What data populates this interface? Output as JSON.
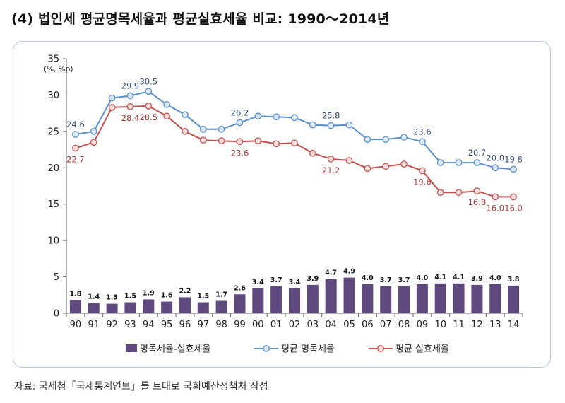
{
  "title": "(4) 법인세 평균명목세율과 평균실효세율 비교: 1990～2014년",
  "source": "자료: 국세청「국세통계연보」를 토대로 국회예산정책처 작성",
  "chart_data": {
    "type": "bar+line",
    "unit_label": "(%, %p)",
    "categories": [
      "90",
      "91",
      "92",
      "93",
      "94",
      "95",
      "96",
      "97",
      "98",
      "99",
      "00",
      "01",
      "02",
      "03",
      "04",
      "05",
      "06",
      "07",
      "08",
      "09",
      "10",
      "11",
      "12",
      "13",
      "14"
    ],
    "ylim": [
      0,
      35
    ],
    "yticks": [
      0,
      5,
      10,
      15,
      20,
      25,
      30,
      35
    ],
    "grid": false,
    "legend_position": "bottom",
    "series": [
      {
        "name": "명목세율-실효세율",
        "kind": "bar",
        "color": "#5f4a7d",
        "values": [
          1.8,
          1.4,
          1.3,
          1.5,
          1.9,
          1.6,
          2.2,
          1.5,
          1.7,
          2.6,
          3.4,
          3.7,
          3.4,
          3.9,
          4.7,
          4.9,
          4.0,
          3.7,
          3.7,
          4.0,
          4.1,
          4.1,
          3.9,
          4.0,
          3.8
        ],
        "labels": [
          "1.8",
          "1.4",
          "1.3",
          "1.5",
          "1.9",
          "1.6",
          "2.2",
          "1.5",
          "1.7",
          "2.6",
          "3.4",
          "3.7",
          "3.4",
          "3.9",
          "4.7",
          "4.9",
          "4.0",
          "3.7",
          "3.7",
          "4.0",
          "4.1",
          "4.1",
          "3.9",
          "4.0",
          "3.8"
        ]
      },
      {
        "name": "평균 명목세율",
        "kind": "line",
        "color": "#5b8fc9",
        "marker_fill": "#dce9f7",
        "values": [
          24.6,
          25.0,
          29.6,
          29.9,
          30.5,
          28.7,
          27.3,
          25.3,
          25.3,
          26.2,
          27.1,
          27.0,
          26.9,
          25.9,
          25.8,
          25.9,
          23.9,
          23.9,
          24.2,
          23.6,
          20.7,
          20.7,
          20.7,
          20.0,
          19.8
        ],
        "labels": [
          {
            "index": 0,
            "text": "24.6",
            "pos": "above"
          },
          {
            "index": 3,
            "text": "29.9",
            "pos": "above"
          },
          {
            "index": 4,
            "text": "30.5",
            "pos": "above"
          },
          {
            "index": 9,
            "text": "26.2",
            "pos": "above"
          },
          {
            "index": 14,
            "text": "25.8",
            "pos": "above"
          },
          {
            "index": 19,
            "text": "23.6",
            "pos": "above"
          },
          {
            "index": 22,
            "text": "20.7",
            "pos": "above"
          },
          {
            "index": 23,
            "text": "20.0",
            "pos": "above"
          },
          {
            "index": 24,
            "text": "19.8",
            "pos": "above"
          }
        ]
      },
      {
        "name": "평균 실효세율",
        "kind": "line",
        "color": "#c0504d",
        "marker_fill": "#f6dcdc",
        "values": [
          22.7,
          23.5,
          28.3,
          28.4,
          28.5,
          27.1,
          25.0,
          23.8,
          23.7,
          23.6,
          23.7,
          23.3,
          23.4,
          22.0,
          21.2,
          21.0,
          19.9,
          20.2,
          20.5,
          19.6,
          16.6,
          16.6,
          16.8,
          16.0,
          16.0
        ],
        "labels": [
          {
            "index": 0,
            "text": "22.7",
            "pos": "below"
          },
          {
            "index": 3,
            "text": "28.4",
            "pos": "below"
          },
          {
            "index": 4,
            "text": "28.5",
            "pos": "below"
          },
          {
            "index": 9,
            "text": "23.6",
            "pos": "below"
          },
          {
            "index": 14,
            "text": "21.2",
            "pos": "below"
          },
          {
            "index": 19,
            "text": "19.6",
            "pos": "below"
          },
          {
            "index": 22,
            "text": "16.8",
            "pos": "below"
          },
          {
            "index": 23,
            "text": "16.0",
            "pos": "below"
          },
          {
            "index": 24,
            "text": "16.0",
            "pos": "below"
          }
        ]
      }
    ]
  }
}
